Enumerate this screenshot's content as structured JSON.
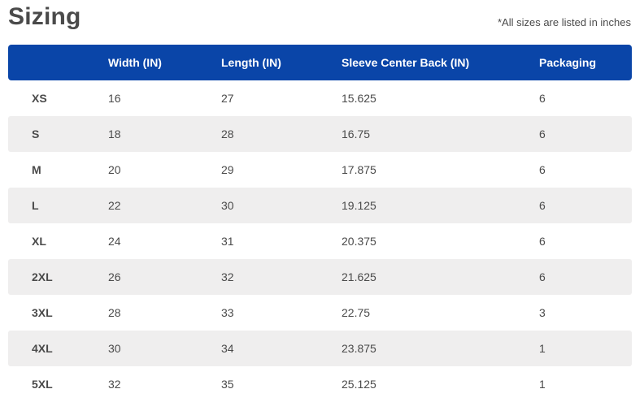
{
  "title": "Sizing",
  "note": "*All sizes are listed in inches",
  "table": {
    "headers": [
      "",
      "Width (IN)",
      "Length (IN)",
      "Sleeve Center Back (IN)",
      "Packaging"
    ],
    "rows": [
      [
        "XS",
        "16",
        "27",
        "15.625",
        "6"
      ],
      [
        "S",
        "18",
        "28",
        "16.75",
        "6"
      ],
      [
        "M",
        "20",
        "29",
        "17.875",
        "6"
      ],
      [
        "L",
        "22",
        "30",
        "19.125",
        "6"
      ],
      [
        "XL",
        "24",
        "31",
        "20.375",
        "6"
      ],
      [
        "2XL",
        "26",
        "32",
        "21.625",
        "6"
      ],
      [
        "3XL",
        "28",
        "33",
        "22.75",
        "3"
      ],
      [
        "4XL",
        "30",
        "34",
        "23.875",
        "1"
      ],
      [
        "5XL",
        "32",
        "35",
        "25.125",
        "1"
      ]
    ]
  },
  "colors": {
    "header_bg": "#0a45a8",
    "stripe_bg": "#efeeee",
    "text": "#4a4a4a"
  }
}
